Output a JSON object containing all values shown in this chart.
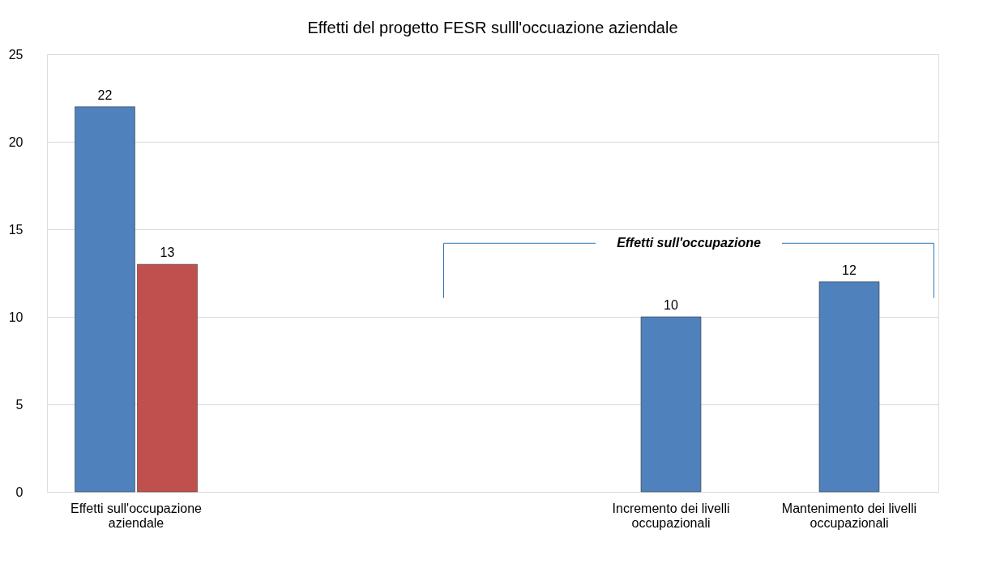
{
  "chart_data": {
    "type": "bar",
    "title": "Effetti del progetto FESR sulll'occuazione aziendale",
    "categories": [
      "Effetti sull'occupazione aziendale",
      null,
      null,
      "Incremento dei livelli occupazionali",
      "Mantenimento dei livelli occupazionali"
    ],
    "series": [
      {
        "color": "#4f81bd",
        "values": [
          22,
          null,
          null,
          10,
          12
        ]
      },
      {
        "color": "#c0504d",
        "values": [
          13,
          null,
          null,
          null,
          null
        ]
      }
    ],
    "annotations": [
      "Effetti sull'occupazione"
    ],
    "ylim": [
      0,
      25
    ],
    "yticks": [
      0,
      5,
      10,
      15,
      20,
      25
    ],
    "grid": "y",
    "data_labels": true
  }
}
